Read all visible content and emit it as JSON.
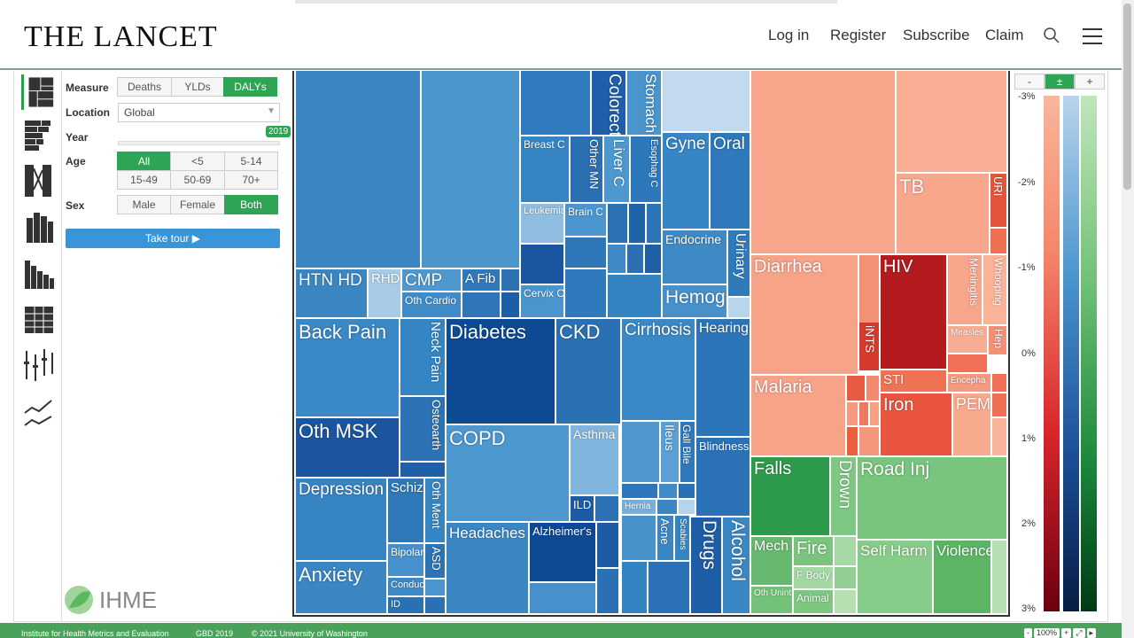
{
  "header": {
    "logo": "THE LANCET",
    "nav": [
      "Log in",
      "Register",
      "Subscribe",
      "Claim"
    ]
  },
  "controls": {
    "measure_label": "Measure",
    "measure_options": [
      "Deaths",
      "YLDs",
      "DALYs"
    ],
    "measure_selected": "DALYs",
    "location_label": "Location",
    "location_value": "Global",
    "year_label": "Year",
    "year_value": "2019",
    "age_label": "Age",
    "age_options": [
      "All",
      "<5",
      "5-14",
      "15-49",
      "50-69",
      "70+"
    ],
    "age_selected": "All",
    "sex_label": "Sex",
    "sex_options": [
      "Male",
      "Female",
      "Both"
    ],
    "sex_selected": "Both",
    "tour_label": "Take tour ▶"
  },
  "ihme_logo": "IHME",
  "treemap": {
    "labels": {
      "htn": "HTN HD",
      "rhd": "RHD",
      "cmp": "CMP",
      "afib": "A Fib",
      "othcardio": "Oth Cardio",
      "colorect": "Colorect C",
      "stomach": "Stomach C",
      "breast": "Breast C",
      "othmn": "Other MN",
      "liver": "Liver C",
      "esoph": "Esophag C",
      "leuk": "Leukemia",
      "brain": "Brain C",
      "cervix": "Cervix C",
      "gyne": "Gyne",
      "oral": "Oral",
      "endo": "Endocrine",
      "urinary": "Urinary",
      "hemog": "Hemog",
      "backpain": "Back Pain",
      "neckpain": "Neck Pain",
      "othmsk": "Oth MSK",
      "osteo": "Osteoarth",
      "diabetes": "Diabetes",
      "ckd": "CKD",
      "cirrhosis": "Cirrhosis",
      "hearing": "Hearing",
      "copd": "COPD",
      "asthma": "Asthma",
      "ild": "ILD",
      "ileus": "Ileus",
      "gallbile": "Gall Bile",
      "blindness": "Blindness",
      "hernia": "Hernia",
      "depression": "Depression",
      "schiz": "Schiz",
      "othment": "Oth Ment",
      "anxiety": "Anxiety",
      "bipolar": "Bipolar",
      "asd": "ASD",
      "conduct": "Conduct",
      "id": "ID",
      "headaches": "Headaches",
      "alzheimers": "Alzheimer's",
      "acne": "Acne",
      "scabies": "Scabies",
      "drugs": "Drugs",
      "alcohol": "Alcohol",
      "tb": "TB",
      "uri": "URI",
      "diarrhea": "Diarrhea",
      "hiv": "HIV",
      "meningitis": "Meningitis",
      "whooping": "Whooping",
      "measles": "Measles",
      "hep": "Hep",
      "ints": "iNTS",
      "encepha": "Encepha",
      "sti": "STI",
      "malaria": "Malaria",
      "iron": "Iron",
      "pem": "PEM",
      "falls": "Falls",
      "drown": "Drown",
      "roadinj": "Road Inj",
      "mech": "Mech",
      "fire": "Fire",
      "fbody": "F Body",
      "othunint": "Oth Unint",
      "animal": "Animal",
      "selfharm": "Self Harm",
      "violence": "Violence"
    }
  },
  "legend": {
    "buttons": [
      "-",
      "±",
      "+"
    ],
    "ticks": [
      "-3%",
      "-2%",
      "-1%",
      "0%",
      "1%",
      "2%",
      "3%"
    ],
    "colors": {
      "red": "#c8102e",
      "blue": "#1f4e8c",
      "green": "#1a7a3c"
    }
  },
  "footer": {
    "org": "Institute for Health Metrics and Evaluation",
    "gbd": "GBD 2019",
    "copyright": "© 2021 University of Washington",
    "zoom": [
      "-",
      "100%",
      "+",
      "⤢",
      "▸"
    ]
  }
}
